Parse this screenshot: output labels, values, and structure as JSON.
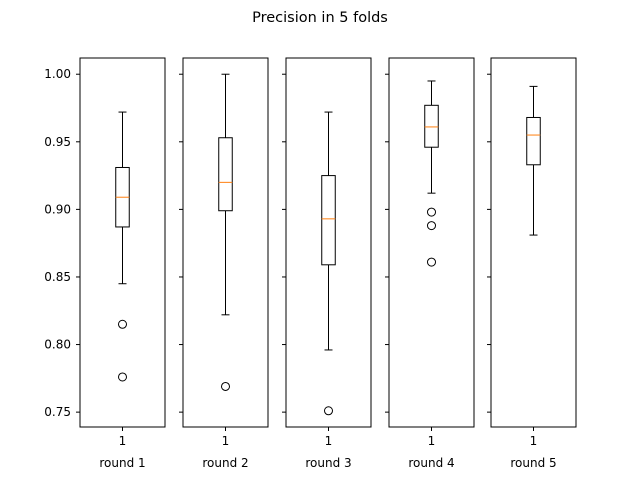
{
  "chart_data": {
    "type": "box",
    "title": "Precision in 5 folds",
    "ylim": [
      0.739,
      1.012
    ],
    "yticks": [
      "0.75",
      "0.80",
      "0.85",
      "0.90",
      "0.95",
      "1.00"
    ],
    "colors": {
      "box": "#000000",
      "median": "#ff7f0e",
      "frame": "#000000"
    },
    "panels": [
      {
        "xlabel": "round 1",
        "xtick": "1",
        "whisker_low": 0.845,
        "q1": 0.887,
        "median": 0.909,
        "q3": 0.931,
        "whisker_high": 0.972,
        "fliers": [
          0.815,
          0.776
        ]
      },
      {
        "xlabel": "round 2",
        "xtick": "1",
        "whisker_low": 0.822,
        "q1": 0.899,
        "median": 0.92,
        "q3": 0.953,
        "whisker_high": 1.0,
        "fliers": [
          0.769
        ]
      },
      {
        "xlabel": "round 3",
        "xtick": "1",
        "whisker_low": 0.796,
        "q1": 0.859,
        "median": 0.893,
        "q3": 0.925,
        "whisker_high": 0.972,
        "fliers": [
          0.751
        ]
      },
      {
        "xlabel": "round 4",
        "xtick": "1",
        "whisker_low": 0.912,
        "q1": 0.946,
        "median": 0.961,
        "q3": 0.977,
        "whisker_high": 0.995,
        "fliers": [
          0.898,
          0.888,
          0.861
        ]
      },
      {
        "xlabel": "round 5",
        "xtick": "1",
        "whisker_low": 0.881,
        "q1": 0.933,
        "median": 0.955,
        "q3": 0.968,
        "whisker_high": 0.991,
        "fliers": []
      }
    ]
  }
}
